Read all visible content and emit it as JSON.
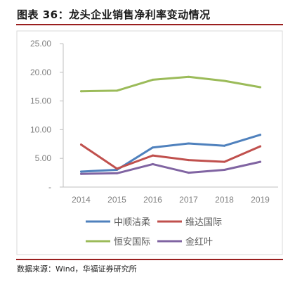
{
  "figure_title": "图表 36：龙头企业销售净利率变动情况",
  "source_note": "数据来源：Wind，华福证券研究所",
  "chart_data": {
    "type": "line",
    "title": "",
    "xlabel": "",
    "ylabel": "",
    "categories": [
      "2014",
      "2015",
      "2016",
      "2017",
      "2018",
      "2019"
    ],
    "ylim": [
      0,
      25
    ],
    "yticks": [
      0,
      5,
      10,
      15,
      20,
      25
    ],
    "ytick_labels": [
      "-",
      "5.00",
      "10.00",
      "15.00",
      "20.00",
      "25.00"
    ],
    "grid": false,
    "legend_position": "bottom",
    "series": [
      {
        "name": "中顺洁柔",
        "color": "#4f81bd",
        "values": [
          2.7,
          3.0,
          6.9,
          7.6,
          7.2,
          9.1
        ]
      },
      {
        "name": "维达国际",
        "color": "#c0504d",
        "values": [
          7.4,
          3.2,
          5.5,
          4.7,
          4.4,
          7.1
        ]
      },
      {
        "name": "恒安国际",
        "color": "#9bbb59",
        "values": [
          16.7,
          16.8,
          18.7,
          19.2,
          18.5,
          17.4
        ]
      },
      {
        "name": "金红叶",
        "color": "#8064a2",
        "values": [
          2.3,
          2.4,
          4.0,
          2.5,
          3.0,
          4.4
        ]
      }
    ]
  }
}
